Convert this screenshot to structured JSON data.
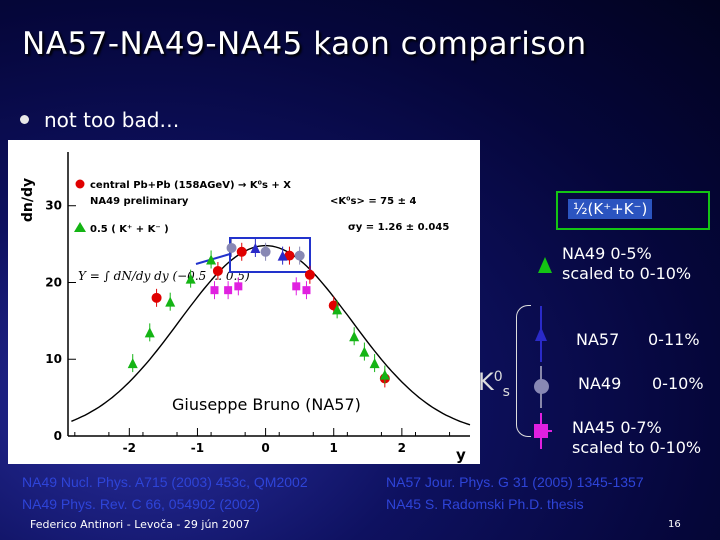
{
  "slide": {
    "title": "NA57-NA49-NA45 kaon comparison",
    "bullet": "not too bad…",
    "author_note": "Giuseppe Bruno (NA57)",
    "footer": "Federico Antinori - Levoča - 29 jún 2007",
    "page_number": "16"
  },
  "legend": {
    "k_avg_label": "½(K⁺+K⁻)",
    "na49_kaon_line1": "NA49    0-5%",
    "na49_kaon_line2": "scaled to 0-10%",
    "k0s_label": "K",
    "k0s_sup": "0",
    "k0s_sub": "s",
    "na57_name": "NA57",
    "na57_range": "0-11%",
    "na49_name": "NA49",
    "na49_range": "0-10%",
    "na45_line1": "NA45    0-7%",
    "na45_line2": "scaled to 0-10%"
  },
  "references": {
    "ref1": "NA49 Nucl. Phys. A715 (2003) 453c, QM2002",
    "ref2": "NA49 Phys. Rev. C 66, 054902 (2002)",
    "ref3": "NA57 Jour. Phys. G 31 (2005) 1345-1357",
    "ref4": "NA45 S. Radomski Ph.D. thesis"
  },
  "chart_data": {
    "type": "scatter",
    "ylabel": "dn/dy",
    "xlabel": "y",
    "xlim": [
      -2.9,
      3.0
    ],
    "ylim": [
      0,
      37
    ],
    "xticks": [
      -2,
      -1,
      0,
      1,
      2
    ],
    "yticks": [
      0,
      10,
      20,
      30
    ],
    "legend_in_plot": [
      "central Pb+Pb (158AGeV) → K⁰s + X",
      "NA49 preliminary",
      "0.5 ( K⁺ + K⁻ )"
    ],
    "annotations": {
      "mean": "<K⁰s> = 75 ± 4",
      "sigma": "σy = 1.26 ± 0.045",
      "formula": "Y = ∫ dN/dy dy  (−0.5 … 0.5)"
    },
    "fit": {
      "amplitude": 24.8,
      "sigma": 1.26
    },
    "series": [
      {
        "name": "central Pb+Pb (158AGeV) → K⁰s + X",
        "color": "#e00000",
        "marker": "circle",
        "x": [
          -1.6,
          -0.7,
          -0.35,
          0.35,
          0.65,
          1.0,
          1.75
        ],
        "y": [
          18.0,
          21.5,
          24.0,
          23.5,
          21.0,
          17.0,
          7.5
        ]
      },
      {
        "name": "0.5 ( K⁺ + K⁻ )",
        "color": "#14b414",
        "marker": "triangle",
        "x": [
          -1.95,
          -1.7,
          -1.4,
          -1.1,
          -0.8,
          1.05,
          1.3,
          1.45,
          1.6,
          1.75
        ],
        "y": [
          9.5,
          13.5,
          17.5,
          20.5,
          23.0,
          16.5,
          13.0,
          11.0,
          9.5,
          8.0
        ]
      },
      {
        "name": "NA57 0-11%",
        "color": "#2a2ac8",
        "marker": "triangle",
        "x": [
          -0.15,
          0.25
        ],
        "y": [
          24.5,
          23.5
        ]
      },
      {
        "name": "NA49 0-10%",
        "color": "#8888b4",
        "marker": "circle",
        "x": [
          -0.5,
          0.0,
          0.5
        ],
        "y": [
          24.5,
          24.0,
          23.5
        ]
      },
      {
        "name": "NA45 0-7%",
        "color": "#e020e0",
        "marker": "square",
        "x": [
          -0.75,
          -0.55,
          -0.4,
          0.45,
          0.6
        ],
        "y": [
          19.0,
          19.0,
          19.5,
          19.5,
          19.0
        ]
      }
    ]
  }
}
